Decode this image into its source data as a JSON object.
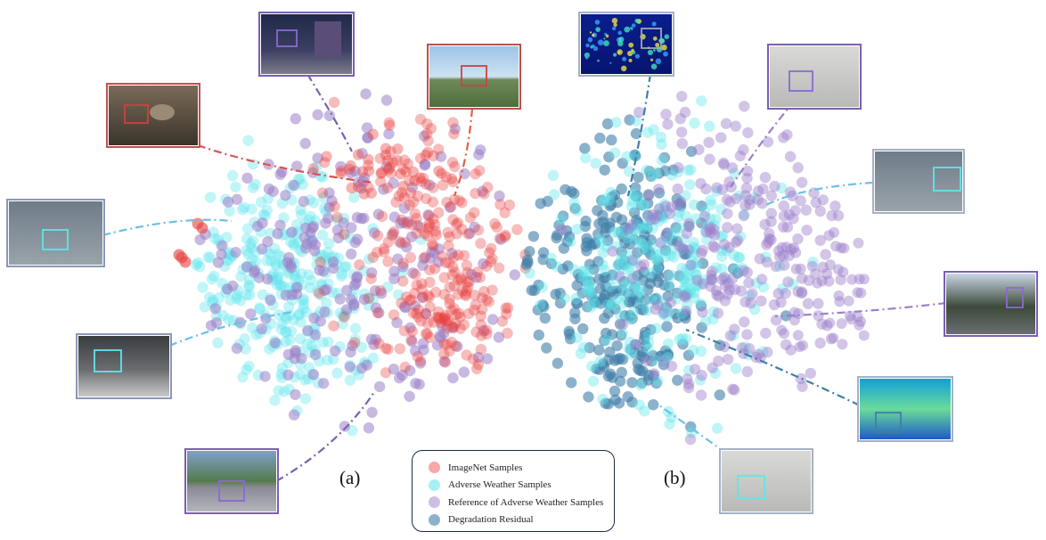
{
  "colors": {
    "imagenet": "#e8403f",
    "adverse": "#5ee6ec",
    "reference": "#9b7fc9",
    "residual": "#3f7fa8"
  },
  "panel_labels": {
    "a": "(a)",
    "b": "(b)"
  },
  "legend": [
    {
      "label": "ImageNet Samples",
      "color": "#e8403f"
    },
    {
      "label": "Adverse Weather Samples",
      "color": "#5ee6ec"
    },
    {
      "label": "Reference of Adverse Weather Samples",
      "color": "#9b7fc9"
    },
    {
      "label": "Degradation Residual",
      "color": "#3f7fa8"
    }
  ],
  "thumbnails": {
    "a": [
      {
        "name": "thumb-a-bird",
        "scene": "bird on branch",
        "border": "#c0504d"
      },
      {
        "name": "thumb-a-night-street",
        "scene": "night street",
        "border": "#7a5fb0"
      },
      {
        "name": "thumb-a-mountain",
        "scene": "mountain meadow",
        "border": "#c0504d"
      },
      {
        "name": "thumb-a-rain-building",
        "scene": "rainy building",
        "border": "#8a98b8"
      },
      {
        "name": "thumb-a-snow-street",
        "scene": "snowy street",
        "border": "#8a98b8"
      },
      {
        "name": "thumb-a-road",
        "scene": "road with car",
        "border": "#7a5fb0"
      }
    ],
    "b": [
      {
        "name": "thumb-b-heatmap",
        "scene": "residual heatmap",
        "border": "#a5b0c4"
      },
      {
        "name": "thumb-b-building",
        "scene": "warehouse building",
        "border": "#7a5fb0"
      },
      {
        "name": "thumb-b-rain-street",
        "scene": "rainy street",
        "border": "#a5b0c4"
      },
      {
        "name": "thumb-b-campus",
        "scene": "campus building",
        "border": "#7a5fb0"
      },
      {
        "name": "thumb-b-residual-map",
        "scene": "residual map",
        "border": "#a5b0c4"
      },
      {
        "name": "thumb-b-rain-building",
        "scene": "rainy warehouse",
        "border": "#a5b0c4"
      }
    ]
  },
  "chart_data": [
    {
      "type": "scatter",
      "panel": "(a)",
      "title": "",
      "xlabel": "",
      "ylabel": "",
      "series": [
        {
          "name": "ImageNet Samples",
          "approx_points": 260,
          "region": "right and upper-right of cluster"
        },
        {
          "name": "Adverse Weather Samples",
          "approx_points": 280,
          "region": "left of cluster"
        },
        {
          "name": "Reference of Adverse Weather Samples",
          "approx_points": 260,
          "region": "spread across cluster"
        }
      ],
      "axes": "none",
      "grid": false
    },
    {
      "type": "scatter",
      "panel": "(b)",
      "title": "",
      "xlabel": "",
      "ylabel": "",
      "series": [
        {
          "name": "Adverse Weather Samples",
          "approx_points": 280,
          "region": "center of cluster"
        },
        {
          "name": "Reference of Adverse Weather Samples",
          "approx_points": 260,
          "region": "right and upper-right of cluster"
        },
        {
          "name": "Degradation Residual",
          "approx_points": 280,
          "region": "left of cluster"
        }
      ],
      "axes": "none",
      "grid": false
    }
  ]
}
